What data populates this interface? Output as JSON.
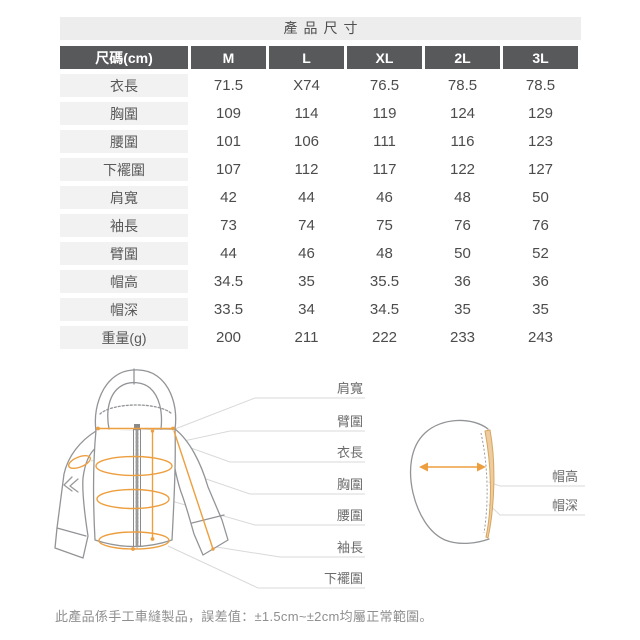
{
  "page": {
    "title": "產品尺寸",
    "note": "此產品係手工車縫製品，誤差值：±1.5cm~±2cm均屬正常範圍。"
  },
  "table": {
    "header": [
      "尺碼(cm)",
      "M",
      "L",
      "XL",
      "2L",
      "3L"
    ],
    "rows": [
      {
        "label": "衣長",
        "values": [
          "71.5",
          "X74",
          "76.5",
          "78.5",
          "78.5"
        ]
      },
      {
        "label": "胸圍",
        "values": [
          "109",
          "114",
          "119",
          "124",
          "129"
        ]
      },
      {
        "label": "腰圍",
        "values": [
          "101",
          "106",
          "111",
          "116",
          "123"
        ]
      },
      {
        "label": "下襬圍",
        "values": [
          "107",
          "112",
          "117",
          "122",
          "127"
        ]
      },
      {
        "label": "肩寬",
        "values": [
          "42",
          "44",
          "46",
          "48",
          "50"
        ]
      },
      {
        "label": "袖長",
        "values": [
          "73",
          "74",
          "75",
          "76",
          "76"
        ]
      },
      {
        "label": "臂圍",
        "values": [
          "44",
          "46",
          "48",
          "50",
          "52"
        ]
      },
      {
        "label": "帽高",
        "values": [
          "34.5",
          "35",
          "35.5",
          "36",
          "36"
        ]
      },
      {
        "label": "帽深",
        "values": [
          "33.5",
          "34",
          "34.5",
          "35",
          "35"
        ]
      },
      {
        "label": "重量(g)",
        "values": [
          "200",
          "211",
          "222",
          "233",
          "243"
        ]
      }
    ]
  },
  "chart_data": {
    "type": "table",
    "title": "產品尺寸",
    "columns": [
      "尺碼(cm)",
      "M",
      "L",
      "XL",
      "2L",
      "3L"
    ],
    "rows": [
      [
        "衣長",
        "71.5",
        "X74",
        "76.5",
        "78.5",
        "78.5"
      ],
      [
        "胸圍",
        "109",
        "114",
        "119",
        "124",
        "129"
      ],
      [
        "腰圍",
        "101",
        "106",
        "111",
        "116",
        "123"
      ],
      [
        "下襬圍",
        "107",
        "112",
        "117",
        "122",
        "127"
      ],
      [
        "肩寬",
        "42",
        "44",
        "46",
        "48",
        "50"
      ],
      [
        "袖長",
        "73",
        "74",
        "75",
        "76",
        "76"
      ],
      [
        "臂圍",
        "44",
        "46",
        "48",
        "50",
        "52"
      ],
      [
        "帽高",
        "34.5",
        "35",
        "35.5",
        "36",
        "36"
      ],
      [
        "帽深",
        "33.5",
        "34",
        "34.5",
        "35",
        "35"
      ],
      [
        "重量(g)",
        "200",
        "211",
        "222",
        "233",
        "243"
      ]
    ]
  },
  "diagram": {
    "jacket_labels": [
      "肩寬",
      "臂圍",
      "衣長",
      "胸圍",
      "腰圍",
      "袖長",
      "下襬圍"
    ],
    "hood_labels": [
      "帽高",
      "帽深"
    ]
  },
  "colors": {
    "header_bg": "#58595b",
    "header_text": "#ffffff",
    "title_bar_bg": "#ededed",
    "row_label_bg": "#f2f2f2",
    "value_text": "#4c4c4c",
    "accent_orange": "#ed9f3f",
    "hood_band_fill": "#edcda0",
    "outline_gray": "#929497",
    "leader_gray": "#d9d9d9",
    "note_text": "#8f8f8f"
  }
}
